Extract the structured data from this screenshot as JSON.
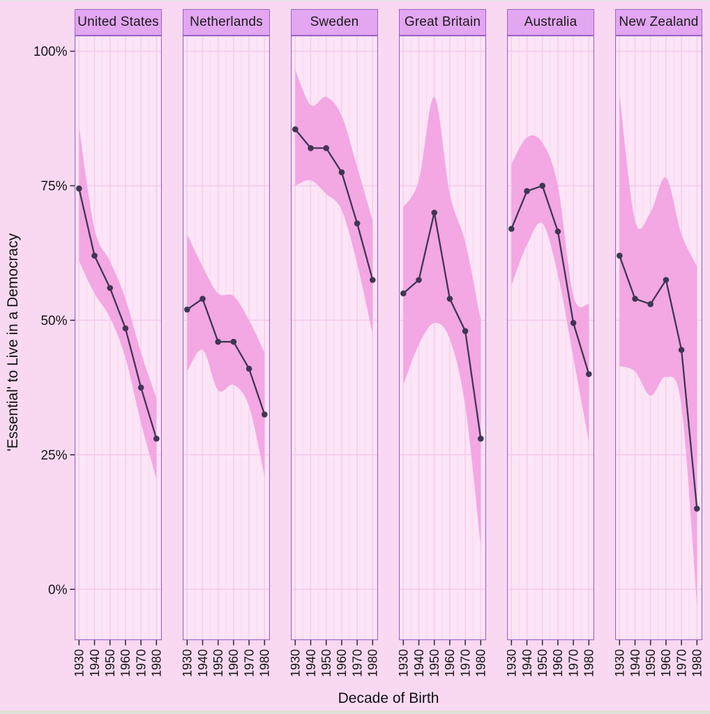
{
  "strips": {
    "top_color": "#e9e1ea",
    "bottom_color": "#dde1d8"
  },
  "chart_data": {
    "type": "line",
    "title": "",
    "xlabel": "Decade of Birth",
    "ylabel": "'Essential' to Live in a Democracy",
    "x_tick_labels": [
      "1930",
      "1940",
      "1950",
      "1960",
      "1970",
      "1980"
    ],
    "y_tick_labels": [
      "100%",
      "75%",
      "50%",
      "25%",
      "0%"
    ],
    "y_tick_values": [
      100,
      75,
      50,
      25,
      0
    ],
    "ylim": [
      -9.5,
      103
    ],
    "grid": "horizontal major lines at 25% steps; vertical lines at decade and half-decade positions",
    "legend_position": "none",
    "facets": [
      {
        "label": "United States",
        "values": [
          74.5,
          62,
          56,
          48.5,
          37.5,
          28
        ],
        "ci_upper": [
          86,
          67,
          61,
          54,
          44,
          35.5
        ],
        "ci_lower": [
          61,
          55,
          50.5,
          43,
          31,
          20.5
        ]
      },
      {
        "label": "Netherlands",
        "values": [
          52,
          54,
          46,
          46,
          41,
          32.5
        ],
        "ci_upper": [
          66,
          60,
          55,
          54.5,
          50,
          44
        ],
        "ci_lower": [
          40.5,
          44.5,
          37,
          38,
          34,
          21
        ]
      },
      {
        "label": "Sweden",
        "values": [
          85.5,
          82,
          82,
          77.5,
          68,
          57.5
        ],
        "ci_upper": [
          96.5,
          90,
          91.5,
          88,
          78.5,
          68.5
        ],
        "ci_lower": [
          75,
          76,
          73.5,
          70.5,
          60.5,
          47.5
        ]
      },
      {
        "label": "Great Britain",
        "values": [
          55,
          57.5,
          70,
          54,
          48,
          28
        ],
        "ci_upper": [
          71,
          76,
          91.5,
          73.5,
          64.5,
          50
        ],
        "ci_lower": [
          38,
          45.5,
          49.5,
          46.5,
          34,
          8
        ]
      },
      {
        "label": "Australia",
        "values": [
          67,
          74,
          75,
          66.5,
          49.5,
          40
        ],
        "ci_upper": [
          79,
          84,
          83,
          75,
          54.5,
          53
        ],
        "ci_lower": [
          56.5,
          64,
          68,
          58.5,
          43,
          27.5
        ]
      },
      {
        "label": "New Zealand",
        "values": [
          62,
          54,
          53,
          57.5,
          44.5,
          15
        ],
        "ci_upper": [
          92,
          68.5,
          70,
          76.5,
          66,
          60
        ],
        "ci_lower": [
          41.5,
          40.5,
          36,
          39.5,
          34,
          -3
        ]
      }
    ],
    "colors": {
      "outer_background": "#f9d9f2",
      "panel_background": "#fce5f6",
      "ribbon": "#f3a7e3",
      "line": "#3e3653",
      "point": "#3e3653",
      "grid_major_horizontal": "#f4c6ea",
      "grid_vertical_major": "#f5cdec",
      "grid_vertical_minor": "#f9dbf3",
      "panel_border": "#9a63c9",
      "facet_header_background": "#e3a6f0",
      "axis_text": "#141414"
    }
  }
}
